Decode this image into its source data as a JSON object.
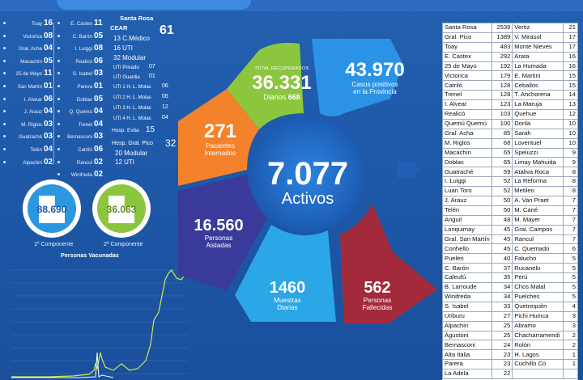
{
  "left_list": [
    {
      "l_name": "Toay",
      "l_val": "16",
      "r_name": "E. Castex",
      "r_val": "11"
    },
    {
      "l_name": "Victorica",
      "l_val": "08",
      "r_name": "C. Barón",
      "r_val": "05"
    },
    {
      "l_name": "Gral. Acha",
      "l_val": "04",
      "r_name": "I. Luiggi",
      "r_val": "08"
    },
    {
      "l_name": "Macachín",
      "l_val": "05",
      "r_name": "Realicó",
      "r_val": "06"
    },
    {
      "l_name": "25 de Mayo",
      "l_val": "11",
      "r_name": "S. Isabel",
      "r_val": "03"
    },
    {
      "l_name": "San Martín",
      "l_val": "01",
      "r_name": "Parera",
      "r_val": "01"
    },
    {
      "l_name": "I. Alvear",
      "l_val": "06",
      "r_name": "Doblas",
      "r_val": "05"
    },
    {
      "l_name": "J. Arauz",
      "l_val": "04",
      "r_name": "Q. Quemú",
      "r_val": "04"
    },
    {
      "l_name": "M. Riglos",
      "l_val": "03",
      "r_name": "Trenel",
      "r_val": "04"
    },
    {
      "l_name": "Guatraché",
      "l_val": "03",
      "r_name": "Bernasconi",
      "r_val": "03"
    },
    {
      "l_name": "Telén",
      "l_val": "04",
      "r_name": "Catriló",
      "r_val": "06"
    },
    {
      "l_name": "Alpachiri",
      "l_val": "02",
      "r_name": "Rancul",
      "r_val": "02"
    },
    {
      "l_name": "",
      "l_val": "",
      "r_name": "Winifreda",
      "r_val": "02"
    }
  ],
  "middle_list": {
    "santa_rosa": "Santa Rosa",
    "cear": "CEAR",
    "cear_total": "61",
    "cmedios": "13 C.Médico",
    "uti16": "16 UTI",
    "modular32": "32  Modular",
    "uti_privado_label": "UTI Privado",
    "uti_privado_val": "07",
    "uti_guardia_label": "UTI Guardia",
    "uti_guardia_val": "01",
    "hl1_label": "UTI 1 H. L. Molas",
    "hl1_val": "06",
    "hl2_label": "UTI 2 H. L. Molas",
    "hl2_val": "06",
    "hl3_label": "UTI 3 H. L. Molas",
    "hl3_val": "12",
    "hl4_label": "UTI 4 H. L. Molas",
    "hl4_val": "04",
    "evita_label": "Hosp. Evita",
    "evita_val": "15",
    "pico_label": "Hosp. Gral. Pico",
    "pico_val": "32",
    "pico_modular": "20  Modular",
    "pico_uti": "12  UTI"
  },
  "vaccination": {
    "first_value": "88.690",
    "first_caption": "1º Componente",
    "second_value": "36.063",
    "second_caption": "2º Componente",
    "title": "Personas Vacunadas",
    "first_color": "#2a97e0",
    "second_color": "#8cc63f"
  },
  "center": {
    "recovered_label": "TOTAL RECUPERADOS",
    "recovered_value": "36.331",
    "recovered_daily_label": "Diarios",
    "recovered_daily_value": "668",
    "positive_value": "43.970",
    "positive_label1": "Casos positivos",
    "positive_label2": "en la Provincia",
    "interned_value": "271",
    "interned_label1": "Pacientes",
    "interned_label2": "Internados",
    "active_value": "7.077",
    "active_label": "Activos",
    "isolated_value": "16.560",
    "isolated_label1": "Personas",
    "isolated_label2": "Aisladas",
    "samples_value": "1460",
    "samples_label1": "Muestras",
    "samples_label2": "Diarias",
    "deaths_value": "562",
    "deaths_label1": "Personas",
    "deaths_label2": "Fallecidas",
    "colors": {
      "green": "#8cc63f",
      "blue": "#2a93e6",
      "orange": "#f3822b",
      "purple": "#3a3a9a",
      "lightblue": "#2ba6e7",
      "darkred": "#a32a3a"
    }
  },
  "table": [
    [
      "Santa Rosa",
      "2539",
      "Vertiz",
      "21"
    ],
    [
      "Gral. Pico",
      "1389",
      "V. Mirasol",
      "17"
    ],
    [
      "Toay",
      "483",
      "Monte Nieves",
      "17"
    ],
    [
      "E. Castex",
      "292",
      "Arata",
      "16"
    ],
    [
      "25 de Mayo",
      "192",
      "La Humada",
      "16"
    ],
    [
      "Victorica",
      "179",
      "E. Martini",
      "15"
    ],
    [
      "Catriló",
      "128",
      "Ceballos",
      "15"
    ],
    [
      "Trenel",
      "128",
      "T. Anchorena",
      "14"
    ],
    [
      "I. Alvear",
      "123",
      "La Maruja",
      "13"
    ],
    [
      "Realicó",
      "103",
      "Quehue",
      "12"
    ],
    [
      "Quemú Quemú",
      "100",
      "Dorila",
      "10"
    ],
    [
      "Gral. Acha",
      "85",
      "Sarah",
      "10"
    ],
    [
      "M. Riglos",
      "68",
      "Loventuel",
      "10"
    ],
    [
      "Macachín",
      "65",
      "Speluzzi",
      "9"
    ],
    [
      "Doblas",
      "65",
      "Limay Mahuida",
      "9"
    ],
    [
      "Guatraché",
      "59",
      "Ataliva Roca",
      "8"
    ],
    [
      "I. Luiggi",
      "52",
      "La Reforma",
      "8"
    ],
    [
      "Luan Toro",
      "52",
      "Metileo",
      "8"
    ],
    [
      "J. Arauz",
      "50",
      "A. Van Praet",
      "7"
    ],
    [
      "Telén",
      "50",
      "M. Cané",
      "7"
    ],
    [
      "Anguil",
      "48",
      "M. Mayer",
      "7"
    ],
    [
      "Lonquimay",
      "45",
      "Gral. Campos",
      "7"
    ],
    [
      "Gral. San Martín",
      "45",
      "Rancul",
      "7"
    ],
    [
      "Conhello",
      "45",
      "C. Quemado",
      "6"
    ],
    [
      "Puelén",
      "40",
      "Falucho",
      "5"
    ],
    [
      "C. Barón",
      "37",
      "Rucanelo",
      "5"
    ],
    [
      "Caleufú",
      "35",
      "Perú",
      "5"
    ],
    [
      "B. Larroude",
      "34",
      "Chos Malal",
      "5"
    ],
    [
      "Winifreda",
      "34",
      "Puelches",
      "5"
    ],
    [
      "S. Isabel",
      "33",
      "Quetrequén",
      "4"
    ],
    [
      "Uriburu",
      "27",
      "Pichi Huinca",
      "3"
    ],
    [
      "Alpachiri",
      "25",
      "Abramo",
      "3"
    ],
    [
      "Agustoni",
      "25",
      "Chacharramendi",
      "2"
    ],
    [
      "Bernasconi",
      "24",
      "Rolón",
      "2"
    ],
    [
      "Alta Italia",
      "23",
      "H. Lagos",
      "1"
    ],
    [
      "Parera",
      "23",
      "Cuchillo Co",
      "1"
    ],
    [
      "La Adela",
      "22",
      "",
      ""
    ]
  ]
}
